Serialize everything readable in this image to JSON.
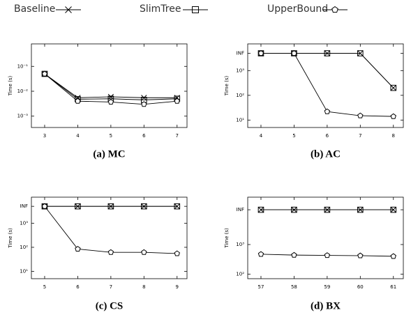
{
  "chart_data": [
    {
      "type": "line",
      "title": "(a) MC",
      "y_label": "Time (s)",
      "log_y": true,
      "x": [
        3,
        4,
        5,
        6,
        7
      ],
      "xlim": [
        2.6,
        7.3
      ],
      "xticks": [
        3,
        4,
        5,
        6,
        7
      ],
      "ylim": [
        0.00035,
        0.8
      ],
      "yticks": [
        {
          "value": 0.001,
          "label": "10⁻³"
        },
        {
          "value": 0.01,
          "label": "10⁻²"
        },
        {
          "value": 0.1,
          "label": "10⁻¹"
        }
      ],
      "series": [
        {
          "name": "Baseline",
          "color": "#000000",
          "marker": "cross",
          "values": [
            0.05,
            0.0055,
            0.006,
            0.0055,
            0.0055
          ]
        },
        {
          "name": "SlimTree",
          "color": "#000000",
          "marker": "square",
          "values": [
            0.05,
            0.0048,
            0.005,
            0.0045,
            0.005
          ]
        },
        {
          "name": "UpperBound",
          "color": "#000000",
          "marker": "pentagon",
          "values": [
            0.05,
            0.004,
            0.0037,
            0.003,
            0.004
          ]
        }
      ]
    },
    {
      "type": "line",
      "title": "(b) AC",
      "y_label": "Time (s)",
      "log_y": true,
      "x": [
        4,
        5,
        6,
        7,
        8
      ],
      "xlim": [
        3.6,
        8.3
      ],
      "xticks": [
        4,
        5,
        6,
        7,
        8
      ],
      "ylim": [
        5,
        12000
      ],
      "yticks": [
        {
          "value": 10,
          "label": "10¹"
        },
        {
          "value": 100,
          "label": "10²"
        },
        {
          "value": 1000,
          "label": "10³"
        },
        {
          "value": 5000,
          "label": "INF"
        }
      ],
      "series": [
        {
          "name": "Baseline",
          "color": "#000000",
          "marker": "cross",
          "values": [
            5000,
            5000,
            5000,
            5000,
            200
          ]
        },
        {
          "name": "SlimTree",
          "color": "#000000",
          "marker": "square",
          "values": [
            5000,
            5000,
            5000,
            5000,
            200
          ]
        },
        {
          "name": "UpperBound",
          "color": "#000000",
          "marker": "pentagon",
          "values": [
            5000,
            5000,
            22,
            15,
            14
          ]
        }
      ]
    },
    {
      "type": "line",
      "title": "(c) CS",
      "y_label": "Time (s)",
      "log_y": true,
      "x": [
        5,
        6,
        7,
        8,
        9
      ],
      "xlim": [
        4.6,
        9.3
      ],
      "xticks": [
        5,
        6,
        7,
        8,
        9
      ],
      "ylim": [
        5,
        12000
      ],
      "yticks": [
        {
          "value": 10,
          "label": "10¹"
        },
        {
          "value": 100,
          "label": "10²"
        },
        {
          "value": 1000,
          "label": "10³"
        },
        {
          "value": 5000,
          "label": "INF"
        }
      ],
      "series": [
        {
          "name": "Baseline",
          "color": "#000000",
          "marker": "cross",
          "values": [
            5000,
            5000,
            5000,
            5000,
            5000
          ]
        },
        {
          "name": "SlimTree",
          "color": "#000000",
          "marker": "square",
          "values": [
            5000,
            5000,
            5000,
            5000,
            5000
          ]
        },
        {
          "name": "UpperBound",
          "color": "#000000",
          "marker": "pentagon",
          "values": [
            5000,
            85,
            62,
            62,
            55
          ]
        }
      ]
    },
    {
      "type": "line",
      "title": "(d) BX",
      "y_label": "Time (s)",
      "log_y": true,
      "x": [
        57,
        58,
        59,
        60,
        61
      ],
      "xlim": [
        56.6,
        61.3
      ],
      "xticks": [
        57,
        58,
        59,
        60,
        61
      ],
      "ylim": [
        70,
        40000
      ],
      "yticks": [
        {
          "value": 100,
          "label": "10²"
        },
        {
          "value": 1000,
          "label": "10³"
        },
        {
          "value": 15000,
          "label": "INF"
        }
      ],
      "series": [
        {
          "name": "Baseline",
          "color": "#000000",
          "marker": "cross",
          "values": [
            15000,
            15000,
            15000,
            15000,
            15000
          ]
        },
        {
          "name": "SlimTree",
          "color": "#000000",
          "marker": "square",
          "values": [
            15000,
            15000,
            15000,
            15000,
            15000
          ]
        },
        {
          "name": "UpperBound",
          "color": "#000000",
          "marker": "pentagon",
          "values": [
            470,
            440,
            430,
            420,
            400
          ]
        }
      ]
    }
  ]
}
